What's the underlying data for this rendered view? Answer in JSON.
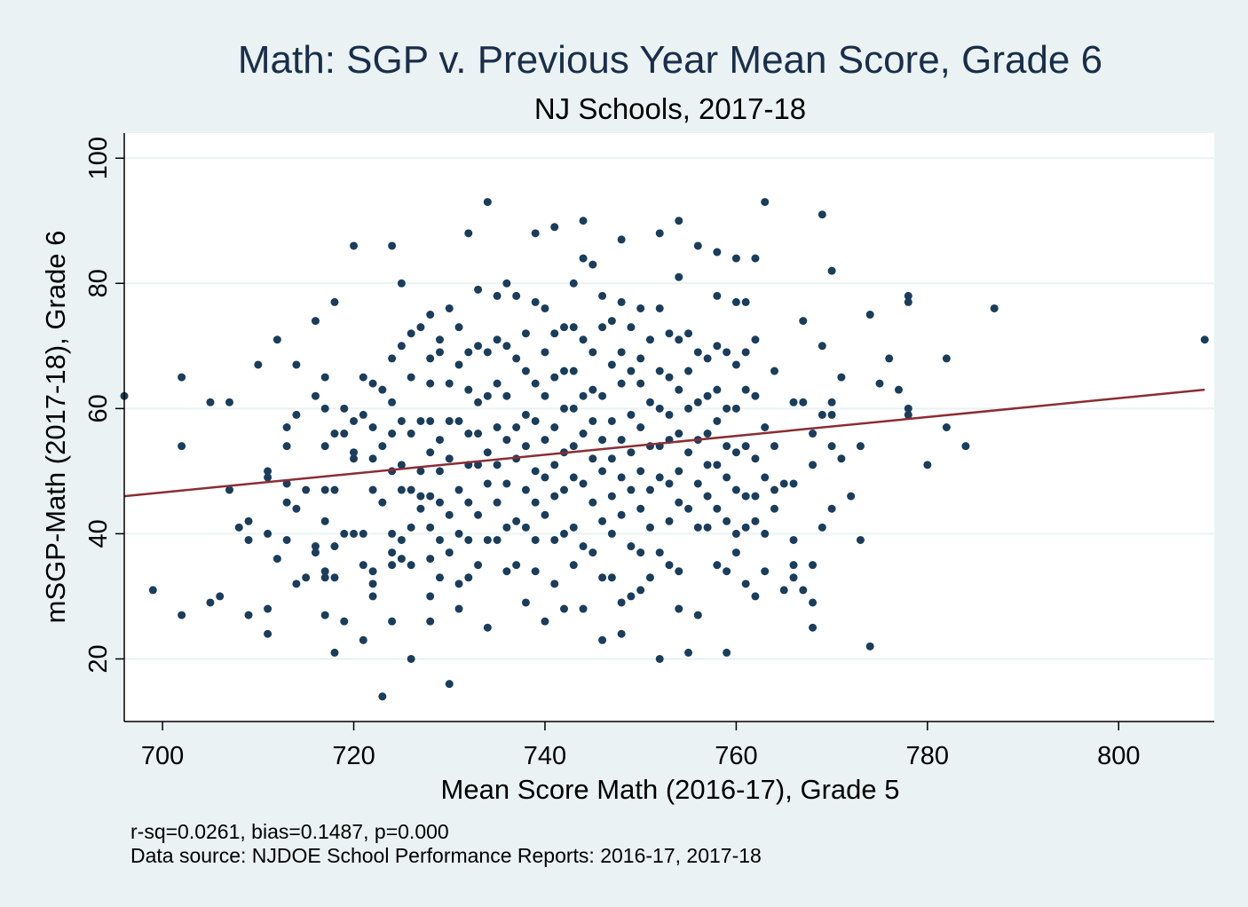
{
  "chart_data": {
    "type": "scatter",
    "title": "Math: SGP v. Previous Year Mean Score, Grade 6",
    "subtitle": "NJ Schools, 2017-18",
    "xlabel": "Mean Score Math (2016-17), Grade 5",
    "ylabel": "mSGP-Math (2017-18), Grade 6",
    "xlim": [
      696,
      810
    ],
    "ylim": [
      10,
      104
    ],
    "xticks": [
      700,
      720,
      740,
      760,
      780,
      800
    ],
    "yticks": [
      20,
      40,
      60,
      80,
      100
    ],
    "grid": "horizontal",
    "notes": [
      "r-sq=0.0261, bias=0.1487, p=0.000",
      "Data source: NJDOE School Performance Reports: 2016-17, 2017-18"
    ],
    "colors": {
      "points": "#1a3d5c",
      "fit_line": "#8b2d34",
      "background": "#eaf2f3",
      "plot_area": "#ffffff",
      "grid": "#eaf2f3"
    },
    "fit_line": {
      "x": [
        696,
        809
      ],
      "y": [
        46,
        63
      ]
    },
    "points": [
      [
        696,
        62
      ],
      [
        699,
        31
      ],
      [
        702,
        65
      ],
      [
        702,
        54
      ],
      [
        702,
        27
      ],
      [
        705,
        61
      ],
      [
        705,
        29
      ],
      [
        706,
        30
      ],
      [
        707,
        61
      ],
      [
        707,
        47
      ],
      [
        708,
        41
      ],
      [
        709,
        42
      ],
      [
        709,
        39
      ],
      [
        709,
        27
      ],
      [
        710,
        67
      ],
      [
        711,
        50
      ],
      [
        711,
        49
      ],
      [
        711,
        40
      ],
      [
        711,
        28
      ],
      [
        711,
        24
      ],
      [
        712,
        71
      ],
      [
        712,
        36
      ],
      [
        713,
        57
      ],
      [
        713,
        54
      ],
      [
        713,
        48
      ],
      [
        713,
        45
      ],
      [
        713,
        39
      ],
      [
        714,
        67
      ],
      [
        714,
        59
      ],
      [
        714,
        44
      ],
      [
        714,
        32
      ],
      [
        715,
        47
      ],
      [
        715,
        33
      ],
      [
        716,
        74
      ],
      [
        716,
        62
      ],
      [
        716,
        38
      ],
      [
        716,
        37
      ],
      [
        717,
        65
      ],
      [
        717,
        60
      ],
      [
        717,
        54
      ],
      [
        717,
        47
      ],
      [
        717,
        42
      ],
      [
        717,
        34
      ],
      [
        717,
        33
      ],
      [
        717,
        27
      ],
      [
        718,
        77
      ],
      [
        718,
        56
      ],
      [
        718,
        47
      ],
      [
        718,
        38
      ],
      [
        718,
        33
      ],
      [
        718,
        21
      ],
      [
        719,
        60
      ],
      [
        719,
        56
      ],
      [
        719,
        40
      ],
      [
        719,
        26
      ],
      [
        720,
        86
      ],
      [
        720,
        58
      ],
      [
        720,
        53
      ],
      [
        720,
        52
      ],
      [
        720,
        40
      ],
      [
        721,
        65
      ],
      [
        721,
        59
      ],
      [
        721,
        40
      ],
      [
        721,
        35
      ],
      [
        721,
        23
      ],
      [
        722,
        64
      ],
      [
        722,
        57
      ],
      [
        722,
        52
      ],
      [
        722,
        47
      ],
      [
        722,
        34
      ],
      [
        722,
        32
      ],
      [
        722,
        30
      ],
      [
        723,
        63
      ],
      [
        723,
        54
      ],
      [
        723,
        45
      ],
      [
        723,
        14
      ],
      [
        724,
        86
      ],
      [
        724,
        68
      ],
      [
        724,
        61
      ],
      [
        724,
        56
      ],
      [
        724,
        50
      ],
      [
        724,
        40
      ],
      [
        724,
        37
      ],
      [
        724,
        35
      ],
      [
        724,
        26
      ],
      [
        725,
        80
      ],
      [
        725,
        70
      ],
      [
        725,
        58
      ],
      [
        725,
        51
      ],
      [
        725,
        47
      ],
      [
        725,
        39
      ],
      [
        725,
        36
      ],
      [
        726,
        72
      ],
      [
        726,
        65
      ],
      [
        726,
        56
      ],
      [
        726,
        47
      ],
      [
        726,
        41
      ],
      [
        726,
        35
      ],
      [
        726,
        20
      ],
      [
        727,
        73
      ],
      [
        727,
        58
      ],
      [
        727,
        50
      ],
      [
        727,
        46
      ],
      [
        727,
        44
      ],
      [
        728,
        75
      ],
      [
        728,
        68
      ],
      [
        728,
        64
      ],
      [
        728,
        58
      ],
      [
        728,
        53
      ],
      [
        728,
        46
      ],
      [
        728,
        41
      ],
      [
        728,
        36
      ],
      [
        728,
        30
      ],
      [
        728,
        26
      ],
      [
        729,
        71
      ],
      [
        729,
        69
      ],
      [
        729,
        55
      ],
      [
        729,
        50
      ],
      [
        729,
        45
      ],
      [
        729,
        39
      ],
      [
        729,
        33
      ],
      [
        730,
        76
      ],
      [
        730,
        64
      ],
      [
        730,
        58
      ],
      [
        730,
        52
      ],
      [
        730,
        43
      ],
      [
        730,
        37
      ],
      [
        730,
        16
      ],
      [
        731,
        73
      ],
      [
        731,
        67
      ],
      [
        731,
        58
      ],
      [
        731,
        47
      ],
      [
        731,
        40
      ],
      [
        731,
        32
      ],
      [
        731,
        28
      ],
      [
        732,
        88
      ],
      [
        732,
        69
      ],
      [
        732,
        63
      ],
      [
        732,
        56
      ],
      [
        732,
        51
      ],
      [
        732,
        45
      ],
      [
        732,
        39
      ],
      [
        732,
        33
      ],
      [
        733,
        79
      ],
      [
        733,
        70
      ],
      [
        733,
        61
      ],
      [
        733,
        56
      ],
      [
        733,
        51
      ],
      [
        733,
        43
      ],
      [
        733,
        35
      ],
      [
        734,
        93
      ],
      [
        734,
        69
      ],
      [
        734,
        62
      ],
      [
        734,
        53
      ],
      [
        734,
        48
      ],
      [
        734,
        39
      ],
      [
        734,
        25
      ],
      [
        735,
        78
      ],
      [
        735,
        71
      ],
      [
        735,
        64
      ],
      [
        735,
        57
      ],
      [
        735,
        51
      ],
      [
        735,
        45
      ],
      [
        735,
        39
      ],
      [
        736,
        80
      ],
      [
        736,
        70
      ],
      [
        736,
        62
      ],
      [
        736,
        55
      ],
      [
        736,
        48
      ],
      [
        736,
        41
      ],
      [
        736,
        34
      ],
      [
        737,
        78
      ],
      [
        737,
        68
      ],
      [
        737,
        57
      ],
      [
        737,
        52
      ],
      [
        737,
        42
      ],
      [
        737,
        35
      ],
      [
        738,
        72
      ],
      [
        738,
        66
      ],
      [
        738,
        59
      ],
      [
        738,
        54
      ],
      [
        738,
        47
      ],
      [
        738,
        41
      ],
      [
        738,
        29
      ],
      [
        739,
        88
      ],
      [
        739,
        77
      ],
      [
        739,
        64
      ],
      [
        739,
        58
      ],
      [
        739,
        50
      ],
      [
        739,
        45
      ],
      [
        739,
        39
      ],
      [
        739,
        34
      ],
      [
        740,
        76
      ],
      [
        740,
        69
      ],
      [
        740,
        62
      ],
      [
        740,
        55
      ],
      [
        740,
        49
      ],
      [
        740,
        43
      ],
      [
        740,
        26
      ],
      [
        741,
        89
      ],
      [
        741,
        72
      ],
      [
        741,
        65
      ],
      [
        741,
        57
      ],
      [
        741,
        51
      ],
      [
        741,
        46
      ],
      [
        741,
        39
      ],
      [
        741,
        32
      ],
      [
        742,
        73
      ],
      [
        742,
        66
      ],
      [
        742,
        60
      ],
      [
        742,
        53
      ],
      [
        742,
        47
      ],
      [
        742,
        40
      ],
      [
        742,
        28
      ],
      [
        743,
        80
      ],
      [
        743,
        73
      ],
      [
        743,
        66
      ],
      [
        743,
        60
      ],
      [
        743,
        54
      ],
      [
        743,
        49
      ],
      [
        743,
        41
      ],
      [
        743,
        35
      ],
      [
        744,
        90
      ],
      [
        744,
        84
      ],
      [
        744,
        71
      ],
      [
        744,
        62
      ],
      [
        744,
        56
      ],
      [
        744,
        48
      ],
      [
        744,
        38
      ],
      [
        744,
        28
      ],
      [
        745,
        83
      ],
      [
        745,
        69
      ],
      [
        745,
        63
      ],
      [
        745,
        58
      ],
      [
        745,
        52
      ],
      [
        745,
        45
      ],
      [
        745,
        37
      ],
      [
        746,
        78
      ],
      [
        746,
        73
      ],
      [
        746,
        62
      ],
      [
        746,
        55
      ],
      [
        746,
        50
      ],
      [
        746,
        42
      ],
      [
        746,
        33
      ],
      [
        746,
        23
      ],
      [
        747,
        74
      ],
      [
        747,
        67
      ],
      [
        747,
        58
      ],
      [
        747,
        52
      ],
      [
        747,
        46
      ],
      [
        747,
        40
      ],
      [
        747,
        33
      ],
      [
        748,
        87
      ],
      [
        748,
        77
      ],
      [
        748,
        69
      ],
      [
        748,
        64
      ],
      [
        748,
        55
      ],
      [
        748,
        49
      ],
      [
        748,
        43
      ],
      [
        748,
        29
      ],
      [
        748,
        24
      ],
      [
        749,
        73
      ],
      [
        749,
        66
      ],
      [
        749,
        59
      ],
      [
        749,
        53
      ],
      [
        749,
        47
      ],
      [
        749,
        38
      ],
      [
        749,
        30
      ],
      [
        750,
        76
      ],
      [
        750,
        68
      ],
      [
        750,
        64
      ],
      [
        750,
        57
      ],
      [
        750,
        50
      ],
      [
        750,
        44
      ],
      [
        750,
        37
      ],
      [
        750,
        31
      ],
      [
        751,
        71
      ],
      [
        751,
        61
      ],
      [
        751,
        54
      ],
      [
        751,
        47
      ],
      [
        751,
        41
      ],
      [
        751,
        33
      ],
      [
        752,
        88
      ],
      [
        752,
        76
      ],
      [
        752,
        66
      ],
      [
        752,
        60
      ],
      [
        752,
        54
      ],
      [
        752,
        49
      ],
      [
        752,
        37
      ],
      [
        752,
        20
      ],
      [
        753,
        72
      ],
      [
        753,
        65
      ],
      [
        753,
        59
      ],
      [
        753,
        55
      ],
      [
        753,
        48
      ],
      [
        753,
        42
      ],
      [
        753,
        35
      ],
      [
        754,
        90
      ],
      [
        754,
        81
      ],
      [
        754,
        71
      ],
      [
        754,
        63
      ],
      [
        754,
        56
      ],
      [
        754,
        50
      ],
      [
        754,
        45
      ],
      [
        754,
        34
      ],
      [
        754,
        28
      ],
      [
        755,
        72
      ],
      [
        755,
        66
      ],
      [
        755,
        60
      ],
      [
        755,
        53
      ],
      [
        755,
        44
      ],
      [
        755,
        21
      ],
      [
        756,
        86
      ],
      [
        756,
        69
      ],
      [
        756,
        61
      ],
      [
        756,
        55
      ],
      [
        756,
        48
      ],
      [
        756,
        41
      ],
      [
        756,
        27
      ],
      [
        757,
        68
      ],
      [
        757,
        62
      ],
      [
        757,
        56
      ],
      [
        757,
        51
      ],
      [
        757,
        46
      ],
      [
        757,
        41
      ],
      [
        758,
        85
      ],
      [
        758,
        78
      ],
      [
        758,
        70
      ],
      [
        758,
        63
      ],
      [
        758,
        58
      ],
      [
        758,
        51
      ],
      [
        758,
        44
      ],
      [
        758,
        35
      ],
      [
        759,
        69
      ],
      [
        759,
        60
      ],
      [
        759,
        54
      ],
      [
        759,
        49
      ],
      [
        759,
        42
      ],
      [
        759,
        34
      ],
      [
        759,
        21
      ],
      [
        760,
        84
      ],
      [
        760,
        77
      ],
      [
        760,
        67
      ],
      [
        760,
        60
      ],
      [
        760,
        53
      ],
      [
        760,
        47
      ],
      [
        760,
        40
      ],
      [
        760,
        37
      ],
      [
        761,
        77
      ],
      [
        761,
        69
      ],
      [
        761,
        63
      ],
      [
        761,
        54
      ],
      [
        761,
        46
      ],
      [
        761,
        41
      ],
      [
        761,
        32
      ],
      [
        762,
        84
      ],
      [
        762,
        71
      ],
      [
        762,
        62
      ],
      [
        762,
        52
      ],
      [
        762,
        46
      ],
      [
        762,
        42
      ],
      [
        762,
        30
      ],
      [
        763,
        93
      ],
      [
        763,
        57
      ],
      [
        763,
        49
      ],
      [
        763,
        40
      ],
      [
        763,
        34
      ],
      [
        764,
        66
      ],
      [
        764,
        54
      ],
      [
        764,
        47
      ],
      [
        764,
        44
      ],
      [
        765,
        48
      ],
      [
        765,
        31
      ],
      [
        766,
        61
      ],
      [
        766,
        48
      ],
      [
        766,
        39
      ],
      [
        766,
        35
      ],
      [
        766,
        33
      ],
      [
        767,
        74
      ],
      [
        767,
        61
      ],
      [
        767,
        31
      ],
      [
        768,
        56
      ],
      [
        768,
        51
      ],
      [
        768,
        35
      ],
      [
        768,
        29
      ],
      [
        768,
        25
      ],
      [
        769,
        91
      ],
      [
        769,
        70
      ],
      [
        769,
        59
      ],
      [
        769,
        41
      ],
      [
        770,
        82
      ],
      [
        770,
        61
      ],
      [
        770,
        59
      ],
      [
        770,
        54
      ],
      [
        770,
        44
      ],
      [
        771,
        65
      ],
      [
        771,
        52
      ],
      [
        772,
        46
      ],
      [
        773,
        54
      ],
      [
        773,
        39
      ],
      [
        774,
        75
      ],
      [
        774,
        22
      ],
      [
        775,
        64
      ],
      [
        776,
        68
      ],
      [
        777,
        63
      ],
      [
        778,
        78
      ],
      [
        778,
        77
      ],
      [
        778,
        60
      ],
      [
        778,
        59
      ],
      [
        780,
        51
      ],
      [
        782,
        68
      ],
      [
        782,
        57
      ],
      [
        784,
        54
      ],
      [
        787,
        76
      ],
      [
        809,
        71
      ]
    ]
  }
}
